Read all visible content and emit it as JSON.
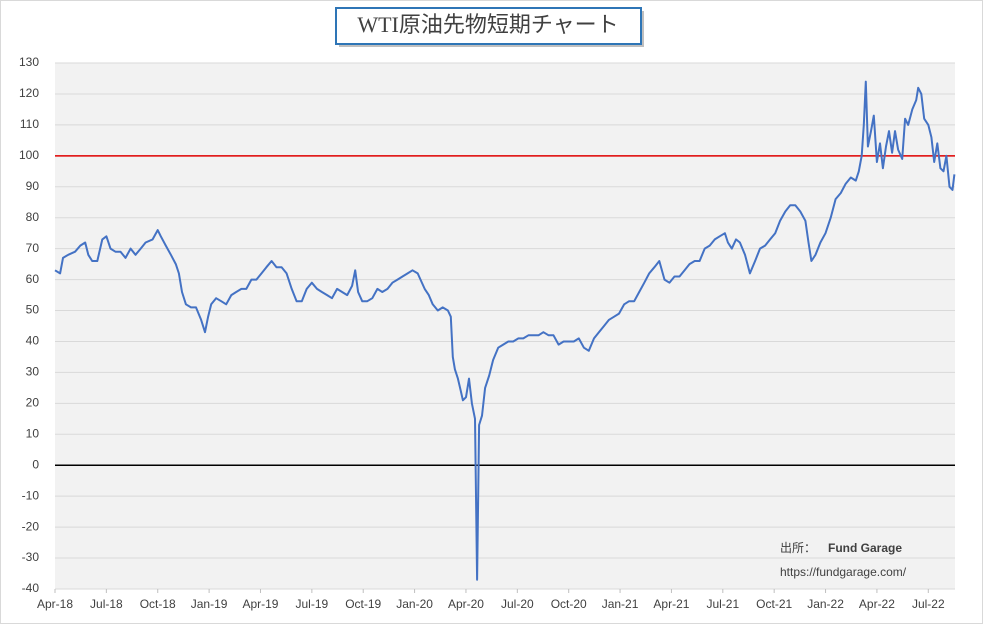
{
  "chart_data": {
    "type": "line",
    "title": "WTI原油先物短期チャート",
    "x": [
      2018.25,
      2018.275,
      2018.289,
      2018.314,
      2018.348,
      2018.373,
      2018.397,
      2018.412,
      2018.431,
      2018.456,
      2018.48,
      2018.5,
      2018.52,
      2018.544,
      2018.569,
      2018.593,
      2018.618,
      2018.642,
      2018.667,
      2018.691,
      2018.725,
      2018.75,
      2018.765,
      2018.789,
      2018.814,
      2018.838,
      2018.853,
      2018.868,
      2018.887,
      2018.912,
      2018.936,
      2018.961,
      2018.98,
      2018.995,
      2019.01,
      2019.034,
      2019.059,
      2019.083,
      2019.108,
      2019.132,
      2019.157,
      2019.181,
      2019.206,
      2019.23,
      2019.255,
      2019.279,
      2019.304,
      2019.328,
      2019.353,
      2019.377,
      2019.402,
      2019.426,
      2019.451,
      2019.475,
      2019.5,
      2019.525,
      2019.549,
      2019.574,
      2019.598,
      2019.623,
      2019.647,
      2019.672,
      2019.696,
      2019.711,
      2019.725,
      2019.745,
      2019.77,
      2019.794,
      2019.819,
      2019.843,
      2019.868,
      2019.892,
      2019.917,
      2019.941,
      2019.966,
      2019.99,
      2020.015,
      2020.029,
      2020.049,
      2020.069,
      2020.088,
      2020.113,
      2020.137,
      2020.162,
      2020.176,
      2020.186,
      2020.196,
      2020.211,
      2020.225,
      2020.235,
      2020.25,
      2020.265,
      2020.279,
      2020.294,
      2020.304,
      2020.314,
      2020.328,
      2020.343,
      2020.363,
      2020.382,
      2020.407,
      2020.431,
      2020.456,
      2020.48,
      2020.505,
      2020.529,
      2020.554,
      2020.578,
      2020.603,
      2020.627,
      2020.652,
      2020.676,
      2020.701,
      2020.725,
      2020.75,
      2020.775,
      2020.799,
      2020.824,
      2020.848,
      2020.873,
      2020.897,
      2020.922,
      2020.946,
      2020.971,
      2020.995,
      2021.02,
      2021.044,
      2021.069,
      2021.093,
      2021.118,
      2021.142,
      2021.167,
      2021.191,
      2021.216,
      2021.24,
      2021.265,
      2021.289,
      2021.314,
      2021.338,
      2021.363,
      2021.387,
      2021.412,
      2021.436,
      2021.461,
      2021.485,
      2021.51,
      2021.525,
      2021.544,
      2021.564,
      2021.583,
      2021.608,
      2021.632,
      2021.657,
      2021.681,
      2021.706,
      2021.73,
      2021.755,
      2021.779,
      2021.804,
      2021.828,
      2021.853,
      2021.877,
      2021.902,
      2021.917,
      2021.931,
      2021.951,
      2021.975,
      2022.0,
      2022.025,
      2022.049,
      2022.074,
      2022.098,
      2022.123,
      2022.147,
      2022.162,
      2022.176,
      2022.186,
      2022.196,
      2022.206,
      2022.221,
      2022.235,
      2022.25,
      2022.265,
      2022.279,
      2022.294,
      2022.309,
      2022.324,
      2022.338,
      2022.353,
      2022.373,
      2022.387,
      2022.402,
      2022.422,
      2022.441,
      2022.451,
      2022.466,
      2022.48,
      2022.5,
      2022.515,
      2022.529,
      2022.544,
      2022.559,
      2022.574,
      2022.588,
      2022.603,
      2022.618,
      2022.627
    ],
    "series": [
      {
        "name": "WTI",
        "color": "#4472c4",
        "values": [
          63,
          62,
          67,
          68,
          69,
          71,
          72,
          68,
          66,
          66,
          73,
          74,
          70,
          69,
          69,
          67,
          70,
          68,
          70,
          72,
          73,
          76,
          74,
          71,
          68,
          65,
          62,
          56,
          52,
          51,
          51,
          47,
          43,
          48,
          52,
          54,
          53,
          52,
          55,
          56,
          57,
          57,
          60,
          60,
          62,
          64,
          66,
          64,
          64,
          62,
          57,
          53,
          53,
          57,
          59,
          57,
          56,
          55,
          54,
          57,
          56,
          55,
          58,
          63,
          56,
          53,
          53,
          54,
          57,
          56,
          57,
          59,
          60,
          61,
          62,
          63,
          62,
          60,
          57,
          55,
          52,
          50,
          51,
          50,
          48,
          35,
          31,
          28,
          24,
          21,
          22,
          28,
          20,
          15,
          -37,
          13,
          16,
          25,
          29,
          34,
          38,
          39,
          40,
          40,
          41,
          41,
          42,
          42,
          42,
          43,
          42,
          42,
          39,
          40,
          40,
          40,
          41,
          38,
          37,
          41,
          43,
          45,
          47,
          48,
          49,
          52,
          53,
          53,
          56,
          59,
          62,
          64,
          66,
          60,
          59,
          61,
          61,
          63,
          65,
          66,
          66,
          70,
          71,
          73,
          74,
          75,
          72,
          70,
          73,
          72,
          68,
          62,
          66,
          70,
          71,
          73,
          75,
          79,
          82,
          84,
          84,
          82,
          79,
          72,
          66,
          68,
          72,
          75,
          80,
          86,
          88,
          91,
          93,
          92,
          95,
          100,
          110,
          124,
          103,
          108,
          113,
          98,
          104,
          96,
          103,
          108,
          101,
          108,
          102,
          99,
          112,
          110,
          115,
          118,
          122,
          120,
          112,
          110,
          106,
          98,
          104,
          96,
          95,
          100,
          90,
          89,
          94
        ]
      }
    ],
    "xlim": [
      2018.25,
      2022.63
    ],
    "xticks": [
      {
        "value": 2018.25,
        "label": "Apr-18"
      },
      {
        "value": 2018.5,
        "label": "Jul-18"
      },
      {
        "value": 2018.75,
        "label": "Oct-18"
      },
      {
        "value": 2019.0,
        "label": "Jan-19"
      },
      {
        "value": 2019.25,
        "label": "Apr-19"
      },
      {
        "value": 2019.5,
        "label": "Jul-19"
      },
      {
        "value": 2019.75,
        "label": "Oct-19"
      },
      {
        "value": 2020.0,
        "label": "Jan-20"
      },
      {
        "value": 2020.25,
        "label": "Apr-20"
      },
      {
        "value": 2020.5,
        "label": "Jul-20"
      },
      {
        "value": 2020.75,
        "label": "Oct-20"
      },
      {
        "value": 2021.0,
        "label": "Jan-21"
      },
      {
        "value": 2021.25,
        "label": "Apr-21"
      },
      {
        "value": 2021.5,
        "label": "Jul-21"
      },
      {
        "value": 2021.75,
        "label": "Oct-21"
      },
      {
        "value": 2022.0,
        "label": "Jan-22"
      },
      {
        "value": 2022.25,
        "label": "Apr-22"
      },
      {
        "value": 2022.5,
        "label": "Jul-22"
      }
    ],
    "ylim": [
      -40,
      130
    ],
    "yticks": [
      -40,
      -30,
      -20,
      -10,
      0,
      10,
      20,
      30,
      40,
      50,
      60,
      70,
      80,
      90,
      100,
      110,
      120,
      130
    ],
    "grid": true,
    "negative_tick_color": "#ff0000",
    "hlines": [
      {
        "value": 100,
        "color": "#e00000"
      },
      {
        "value": 0,
        "color": "#000000"
      }
    ],
    "source_label": "出所：",
    "source_name": "Fund Garage",
    "source_name_color": "#1ea0d8",
    "source_url": "https://fundgarage.com/"
  }
}
